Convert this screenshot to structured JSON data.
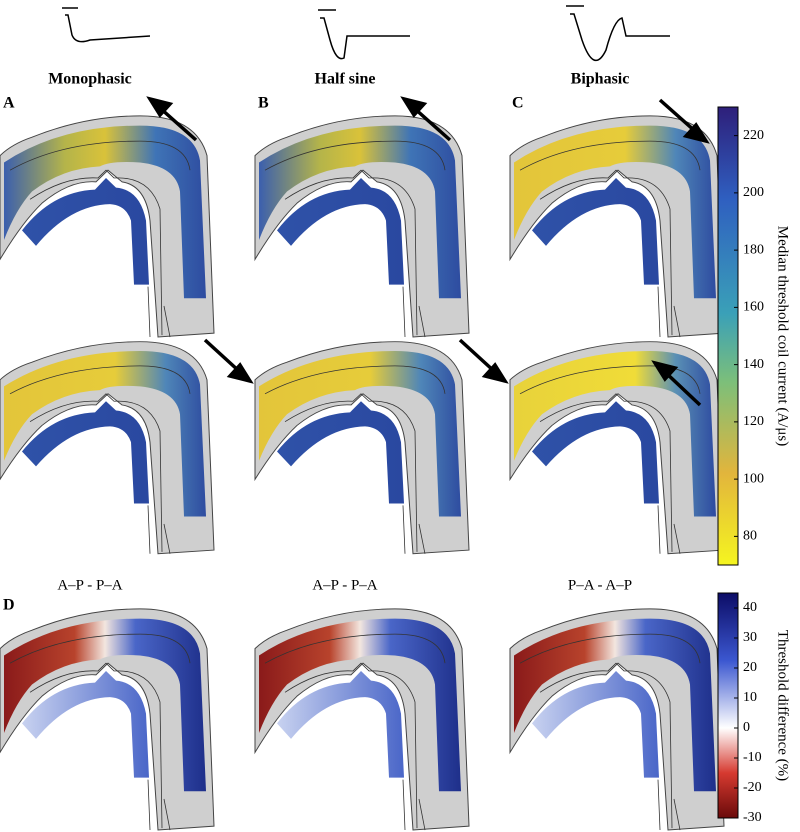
{
  "columns": [
    {
      "title": "Monophasic"
    },
    {
      "title": "Half sine"
    },
    {
      "title": "Biphasic"
    }
  ],
  "panel_labels": [
    "A",
    "B",
    "C",
    "D"
  ],
  "difference_labels": [
    "A–P - P–A",
    "A–P - P–A",
    "P–A - A–P"
  ],
  "colorbars": [
    {
      "label": "Median threshold coil current (A/μs)",
      "lim": [
        70,
        230
      ],
      "ticks": [
        80,
        100,
        120,
        140,
        160,
        180,
        200,
        220
      ]
    },
    {
      "label": "Threshold difference (%)",
      "lim": [
        -30,
        45
      ],
      "ticks": [
        40,
        30,
        20,
        10,
        0,
        -10,
        -20,
        -30
      ]
    }
  ]
}
